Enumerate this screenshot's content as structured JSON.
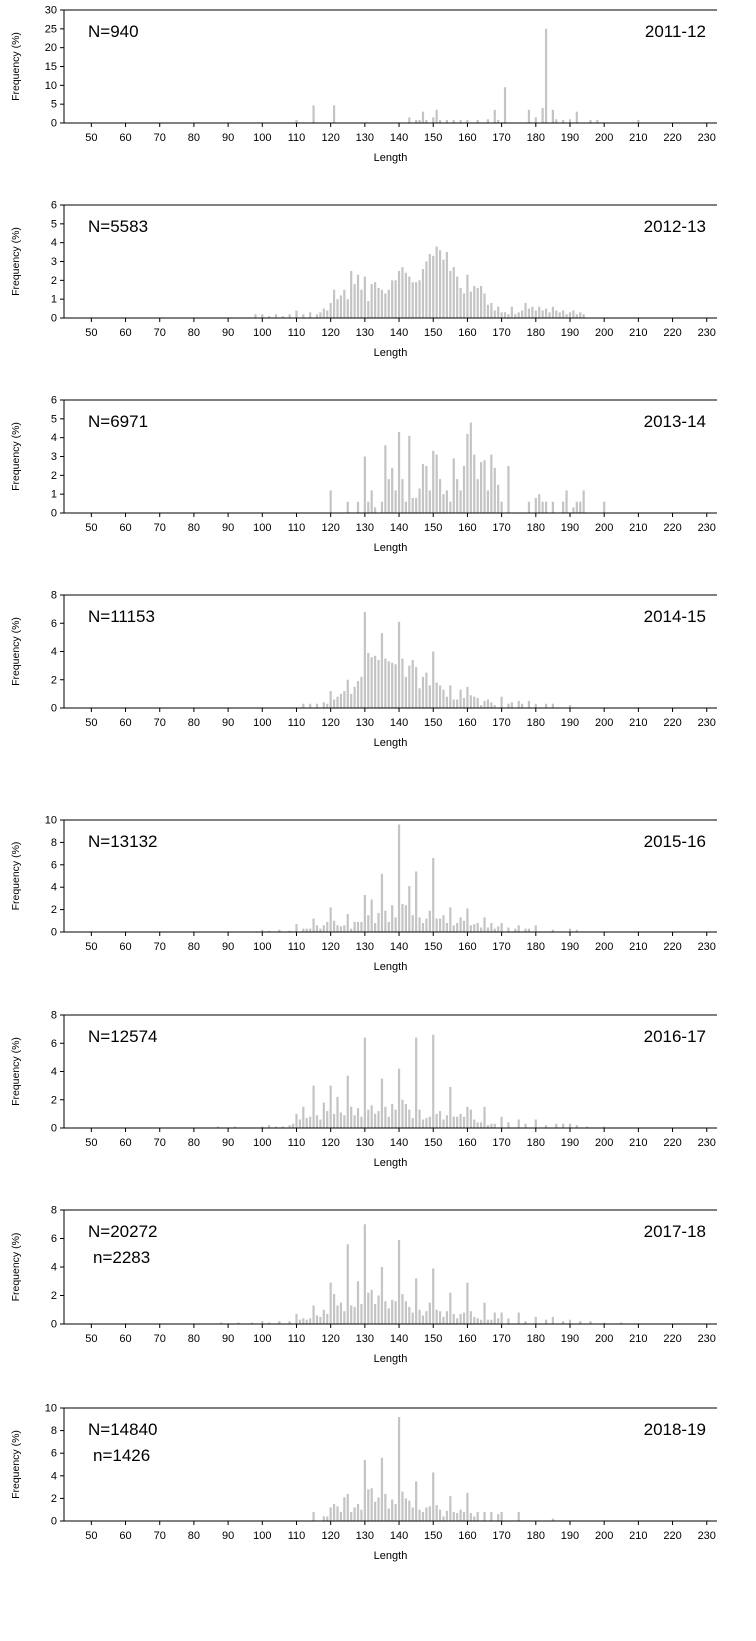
{
  "style": {
    "bar_color": "#c4c4c4",
    "axis_color": "#000000"
  },
  "chart_data": [
    {
      "type": "bar",
      "title": "",
      "xlabel": "Length",
      "ylabel": "Frequency (%)",
      "xlim": [
        42,
        233
      ],
      "ylim": [
        0,
        30
      ],
      "yticks": [
        0,
        5,
        10,
        15,
        20,
        25,
        30
      ],
      "xticks": [
        50,
        60,
        70,
        80,
        90,
        100,
        110,
        120,
        130,
        140,
        150,
        160,
        170,
        180,
        190,
        200,
        210,
        220,
        230
      ],
      "annotations": [
        "N=940"
      ],
      "period": "2011-12",
      "lengths": [
        110,
        115,
        121,
        143,
        145,
        146,
        147,
        148,
        150,
        151,
        152,
        154,
        156,
        158,
        160,
        163,
        166,
        168,
        169,
        171,
        178,
        180,
        182,
        183,
        185,
        186,
        188,
        190,
        192,
        196,
        198,
        210
      ],
      "values": [
        0.8,
        4.7,
        4.7,
        1.5,
        0.8,
        0.8,
        3.0,
        0.8,
        1.5,
        3.5,
        0.8,
        0.8,
        0.8,
        0.8,
        0.8,
        0.8,
        1.0,
        3.5,
        0.8,
        9.5,
        3.5,
        1.5,
        4.0,
        25.0,
        3.5,
        1.0,
        0.8,
        1.0,
        3.0,
        0.8,
        0.8,
        0.8
      ]
    },
    {
      "type": "bar",
      "title": "",
      "xlabel": "Length",
      "ylabel": "Frequency (%)",
      "xlim": [
        42,
        233
      ],
      "ylim": [
        0,
        6
      ],
      "yticks": [
        0,
        1,
        2,
        3,
        4,
        5,
        6
      ],
      "xticks": [
        50,
        60,
        70,
        80,
        90,
        100,
        110,
        120,
        130,
        140,
        150,
        160,
        170,
        180,
        190,
        200,
        210,
        220,
        230
      ],
      "annotations": [
        "N=5583"
      ],
      "period": "2012-13",
      "lengths": [
        98,
        100,
        102,
        104,
        106,
        108,
        110,
        112,
        114,
        116,
        117,
        118,
        119,
        120,
        121,
        122,
        123,
        124,
        125,
        126,
        127,
        128,
        129,
        130,
        131,
        132,
        133,
        134,
        135,
        136,
        137,
        138,
        139,
        140,
        141,
        142,
        143,
        144,
        145,
        146,
        147,
        148,
        149,
        150,
        151,
        152,
        153,
        154,
        155,
        156,
        157,
        158,
        159,
        160,
        161,
        162,
        163,
        164,
        165,
        166,
        167,
        168,
        169,
        170,
        171,
        172,
        173,
        174,
        175,
        176,
        177,
        178,
        179,
        180,
        181,
        182,
        183,
        184,
        185,
        186,
        187,
        188,
        189,
        190,
        191,
        192,
        193,
        194
      ],
      "values": [
        0.2,
        0.2,
        0.1,
        0.2,
        0.1,
        0.2,
        0.4,
        0.2,
        0.3,
        0.2,
        0.3,
        0.5,
        0.4,
        0.8,
        1.5,
        1.0,
        1.2,
        1.5,
        1.0,
        2.5,
        1.8,
        2.3,
        1.5,
        2.2,
        0.9,
        1.8,
        1.9,
        1.6,
        1.5,
        1.3,
        1.5,
        2.0,
        2.0,
        2.5,
        2.7,
        2.4,
        2.2,
        1.9,
        1.9,
        2.0,
        2.6,
        3.0,
        3.4,
        3.3,
        3.8,
        3.6,
        3.1,
        3.5,
        2.5,
        2.7,
        2.2,
        1.6,
        1.3,
        2.3,
        1.4,
        1.7,
        1.6,
        1.7,
        1.3,
        0.7,
        0.8,
        0.4,
        0.6,
        0.3,
        0.3,
        0.2,
        0.6,
        0.2,
        0.3,
        0.4,
        0.8,
        0.5,
        0.6,
        0.4,
        0.6,
        0.4,
        0.5,
        0.3,
        0.6,
        0.4,
        0.3,
        0.4,
        0.2,
        0.3,
        0.4,
        0.2,
        0.3,
        0.2
      ]
    },
    {
      "type": "bar",
      "title": "",
      "xlabel": "Length",
      "ylabel": "Frequency (%)",
      "xlim": [
        42,
        233
      ],
      "ylim": [
        0,
        6
      ],
      "yticks": [
        0,
        1,
        2,
        3,
        4,
        5,
        6
      ],
      "xticks": [
        50,
        60,
        70,
        80,
        90,
        100,
        110,
        120,
        130,
        140,
        150,
        160,
        170,
        180,
        190,
        200,
        210,
        220,
        230
      ],
      "annotations": [
        "N=6971"
      ],
      "period": "2013-14",
      "lengths": [
        120,
        125,
        128,
        130,
        131,
        132,
        133,
        135,
        136,
        137,
        138,
        139,
        140,
        141,
        142,
        143,
        144,
        145,
        146,
        147,
        148,
        149,
        150,
        151,
        152,
        153,
        154,
        155,
        156,
        157,
        158,
        159,
        160,
        161,
        162,
        163,
        164,
        165,
        166,
        167,
        168,
        169,
        170,
        172,
        178,
        180,
        181,
        182,
        183,
        185,
        188,
        189,
        191,
        192,
        193,
        194,
        200
      ],
      "values": [
        1.2,
        0.6,
        0.6,
        3.0,
        0.6,
        1.2,
        0.3,
        0.6,
        3.6,
        1.8,
        2.4,
        1.2,
        4.3,
        1.8,
        0.6,
        4.1,
        0.8,
        0.8,
        1.3,
        2.6,
        2.5,
        1.2,
        3.3,
        3.1,
        1.8,
        1.0,
        1.2,
        0.6,
        2.9,
        1.8,
        1.2,
        2.5,
        4.2,
        4.8,
        3.1,
        1.8,
        2.7,
        2.8,
        1.2,
        3.1,
        2.4,
        1.5,
        0.6,
        2.5,
        0.6,
        0.8,
        1.0,
        0.6,
        0.6,
        0.6,
        0.6,
        1.2,
        0.3,
        0.6,
        0.6,
        1.2,
        0.6
      ]
    },
    {
      "type": "bar",
      "title": "",
      "xlabel": "Length",
      "ylabel": "Frequency (%)",
      "xlim": [
        42,
        233
      ],
      "ylim": [
        0,
        8
      ],
      "yticks": [
        0,
        2,
        4,
        6,
        8
      ],
      "xticks": [
        50,
        60,
        70,
        80,
        90,
        100,
        110,
        120,
        130,
        140,
        150,
        160,
        170,
        180,
        190,
        200,
        210,
        220,
        230
      ],
      "annotations": [
        "N=11153"
      ],
      "period": "2014-15",
      "lengths": [
        112,
        114,
        116,
        118,
        119,
        120,
        121,
        122,
        123,
        124,
        125,
        126,
        127,
        128,
        129,
        130,
        131,
        132,
        133,
        134,
        135,
        136,
        137,
        138,
        139,
        140,
        141,
        142,
        143,
        144,
        145,
        146,
        147,
        148,
        149,
        150,
        151,
        152,
        153,
        154,
        155,
        156,
        157,
        158,
        159,
        160,
        161,
        162,
        163,
        164,
        165,
        166,
        167,
        168,
        170,
        172,
        173,
        175,
        176,
        178,
        180,
        183,
        185,
        190
      ],
      "values": [
        0.3,
        0.3,
        0.3,
        0.4,
        0.3,
        1.2,
        0.6,
        0.8,
        1.0,
        1.2,
        2.0,
        1.0,
        1.5,
        1.9,
        2.2,
        6.8,
        3.9,
        3.6,
        3.7,
        3.4,
        5.3,
        3.5,
        3.3,
        3.2,
        3.1,
        6.1,
        3.5,
        2.2,
        3.0,
        3.4,
        2.9,
        1.4,
        2.2,
        2.5,
        1.6,
        4.0,
        1.8,
        1.6,
        1.3,
        0.8,
        1.6,
        0.6,
        0.6,
        1.3,
        0.7,
        1.5,
        0.9,
        0.8,
        0.7,
        0.2,
        0.5,
        0.6,
        0.4,
        0.2,
        0.8,
        0.3,
        0.4,
        0.5,
        0.3,
        0.5,
        0.3,
        0.3,
        0.3,
        0.2
      ]
    },
    {
      "type": "bar",
      "title": "",
      "xlabel": "Length",
      "ylabel": "Frequency (%)",
      "xlim": [
        42,
        233
      ],
      "ylim": [
        0,
        10
      ],
      "yticks": [
        0,
        2,
        4,
        6,
        8,
        10
      ],
      "xticks": [
        50,
        60,
        70,
        80,
        90,
        100,
        110,
        120,
        130,
        140,
        150,
        160,
        170,
        180,
        190,
        200,
        210,
        220,
        230
      ],
      "annotations": [
        "N=13132"
      ],
      "period": "2015-16",
      "lengths": [
        100,
        102,
        105,
        108,
        110,
        112,
        113,
        114,
        115,
        116,
        117,
        118,
        119,
        120,
        121,
        122,
        123,
        124,
        125,
        126,
        127,
        128,
        129,
        130,
        131,
        132,
        133,
        134,
        135,
        136,
        137,
        138,
        139,
        140,
        141,
        142,
        143,
        144,
        145,
        146,
        147,
        148,
        149,
        150,
        151,
        152,
        153,
        154,
        155,
        156,
        157,
        158,
        159,
        160,
        161,
        162,
        163,
        164,
        165,
        166,
        167,
        168,
        169,
        170,
        172,
        174,
        175,
        177,
        178,
        180,
        185,
        190,
        192
      ],
      "values": [
        0.2,
        0.1,
        0.2,
        0.1,
        0.7,
        0.3,
        0.3,
        0.3,
        1.2,
        0.6,
        0.3,
        0.6,
        0.9,
        2.2,
        1.0,
        0.6,
        0.5,
        0.6,
        1.6,
        0.3,
        0.9,
        0.9,
        0.9,
        3.3,
        1.5,
        2.9,
        0.8,
        1.7,
        5.2,
        1.9,
        0.9,
        2.4,
        1.3,
        9.6,
        2.5,
        2.4,
        4.1,
        1.5,
        5.4,
        1.3,
        0.8,
        1.2,
        1.9,
        6.6,
        1.2,
        1.2,
        1.5,
        0.8,
        2.2,
        0.6,
        0.8,
        1.3,
        1.0,
        2.1,
        0.6,
        0.7,
        0.8,
        0.4,
        1.3,
        0.4,
        0.8,
        0.3,
        0.5,
        0.8,
        0.4,
        0.3,
        0.6,
        0.3,
        0.3,
        0.6,
        0.2,
        0.3,
        0.2
      ]
    },
    {
      "type": "bar",
      "title": "",
      "xlabel": "Length",
      "ylabel": "Frequency (%)",
      "xlim": [
        42,
        233
      ],
      "ylim": [
        0,
        8
      ],
      "yticks": [
        0,
        2,
        4,
        6,
        8
      ],
      "xticks": [
        50,
        60,
        70,
        80,
        90,
        100,
        110,
        120,
        130,
        140,
        150,
        160,
        170,
        180,
        190,
        200,
        210,
        220,
        230
      ],
      "annotations": [
        "N=12574"
      ],
      "period": "2016-17",
      "lengths": [
        87,
        92,
        100,
        102,
        104,
        106,
        108,
        109,
        110,
        111,
        112,
        113,
        114,
        115,
        116,
        117,
        118,
        119,
        120,
        121,
        122,
        123,
        124,
        125,
        126,
        127,
        128,
        129,
        130,
        131,
        132,
        133,
        134,
        135,
        136,
        137,
        138,
        139,
        140,
        141,
        142,
        143,
        144,
        145,
        146,
        147,
        148,
        149,
        150,
        151,
        152,
        153,
        154,
        155,
        156,
        157,
        158,
        159,
        160,
        161,
        162,
        163,
        164,
        165,
        166,
        167,
        168,
        170,
        172,
        175,
        177,
        180,
        183,
        186,
        188,
        190,
        192,
        195,
        200
      ],
      "values": [
        0.1,
        0.1,
        0.1,
        0.2,
        0.1,
        0.1,
        0.2,
        0.3,
        1.0,
        0.6,
        1.5,
        0.7,
        0.8,
        3.0,
        0.9,
        0.6,
        1.8,
        1.2,
        3.0,
        1.0,
        2.2,
        1.1,
        0.9,
        3.7,
        1.5,
        0.9,
        1.4,
        0.8,
        6.4,
        1.3,
        1.6,
        1.0,
        1.2,
        3.5,
        1.5,
        0.8,
        1.7,
        1.3,
        4.2,
        2.0,
        1.7,
        1.3,
        0.7,
        6.4,
        1.3,
        0.6,
        0.7,
        0.8,
        6.6,
        1.0,
        1.2,
        0.6,
        0.9,
        2.9,
        0.8,
        0.8,
        1.0,
        0.8,
        1.5,
        1.3,
        0.6,
        0.4,
        0.4,
        1.5,
        0.2,
        0.3,
        0.3,
        0.8,
        0.4,
        0.6,
        0.3,
        0.6,
        0.2,
        0.3,
        0.3,
        0.3,
        0.2,
        0.1,
        0.1
      ]
    },
    {
      "type": "bar",
      "title": "",
      "xlabel": "Length",
      "ylabel": "Frequency (%)",
      "xlim": [
        42,
        233
      ],
      "ylim": [
        0,
        8
      ],
      "yticks": [
        0,
        2,
        4,
        6,
        8
      ],
      "xticks": [
        50,
        60,
        70,
        80,
        90,
        100,
        110,
        120,
        130,
        140,
        150,
        160,
        170,
        180,
        190,
        200,
        210,
        220,
        230
      ],
      "annotations": [
        "N=20272",
        "n=2283"
      ],
      "period": "2017-18",
      "lengths": [
        88,
        93,
        97,
        100,
        102,
        105,
        108,
        110,
        111,
        112,
        113,
        114,
        115,
        116,
        117,
        118,
        119,
        120,
        121,
        122,
        123,
        124,
        125,
        126,
        127,
        128,
        129,
        130,
        131,
        132,
        133,
        134,
        135,
        136,
        137,
        138,
        139,
        140,
        141,
        142,
        143,
        144,
        145,
        146,
        147,
        148,
        149,
        150,
        151,
        152,
        153,
        154,
        155,
        156,
        157,
        158,
        159,
        160,
        161,
        162,
        163,
        164,
        165,
        166,
        167,
        168,
        169,
        170,
        172,
        175,
        177,
        180,
        183,
        185,
        188,
        190,
        193,
        196,
        200,
        205
      ],
      "values": [
        0.1,
        0.1,
        0.1,
        0.2,
        0.1,
        0.2,
        0.2,
        0.7,
        0.3,
        0.4,
        0.3,
        0.4,
        1.3,
        0.6,
        0.5,
        1.0,
        0.7,
        2.9,
        2.1,
        1.3,
        1.5,
        0.9,
        5.6,
        1.3,
        1.2,
        3.0,
        1.4,
        7.0,
        2.2,
        2.4,
        1.4,
        2.0,
        4.0,
        1.6,
        1.1,
        1.7,
        1.6,
        5.9,
        2.1,
        1.6,
        1.2,
        0.8,
        3.2,
        1.0,
        0.6,
        0.9,
        1.5,
        3.9,
        1.0,
        0.9,
        0.5,
        0.9,
        2.2,
        0.7,
        0.4,
        0.7,
        0.8,
        2.9,
        0.9,
        0.5,
        0.4,
        0.3,
        1.5,
        0.3,
        0.3,
        0.8,
        0.4,
        0.8,
        0.4,
        0.8,
        0.2,
        0.5,
        0.3,
        0.5,
        0.2,
        0.3,
        0.2,
        0.2,
        0.1,
        0.1
      ]
    },
    {
      "type": "bar",
      "title": "",
      "xlabel": "Length",
      "ylabel": "Frequency (%)",
      "xlim": [
        42,
        233
      ],
      "ylim": [
        0,
        10
      ],
      "yticks": [
        0,
        2,
        4,
        6,
        8,
        10
      ],
      "xticks": [
        50,
        60,
        70,
        80,
        90,
        100,
        110,
        120,
        130,
        140,
        150,
        160,
        170,
        180,
        190,
        200,
        210,
        220,
        230
      ],
      "annotations": [
        "N=14840",
        "n=1426"
      ],
      "period": "2018-19",
      "lengths": [
        115,
        118,
        119,
        120,
        121,
        122,
        123,
        124,
        125,
        126,
        127,
        128,
        129,
        130,
        131,
        132,
        133,
        134,
        135,
        136,
        137,
        138,
        139,
        140,
        141,
        142,
        143,
        144,
        145,
        146,
        147,
        148,
        149,
        150,
        151,
        152,
        153,
        154,
        155,
        156,
        157,
        158,
        159,
        160,
        161,
        162,
        163,
        165,
        167,
        169,
        170,
        175,
        185
      ],
      "values": [
        0.8,
        0.4,
        0.4,
        1.2,
        1.5,
        1.3,
        0.8,
        2.1,
        2.4,
        0.8,
        1.2,
        1.5,
        1.0,
        5.4,
        2.8,
        2.9,
        1.7,
        2.1,
        5.6,
        2.4,
        1.1,
        1.9,
        1.5,
        9.2,
        2.6,
        2.0,
        1.8,
        1.2,
        3.5,
        1.0,
        0.8,
        1.2,
        1.3,
        4.3,
        1.4,
        1.0,
        0.4,
        0.9,
        2.2,
        0.8,
        0.7,
        1.0,
        0.8,
        2.5,
        0.7,
        0.4,
        0.8,
        0.8,
        0.8,
        0.6,
        0.8,
        0.8,
        0.2
      ]
    }
  ]
}
